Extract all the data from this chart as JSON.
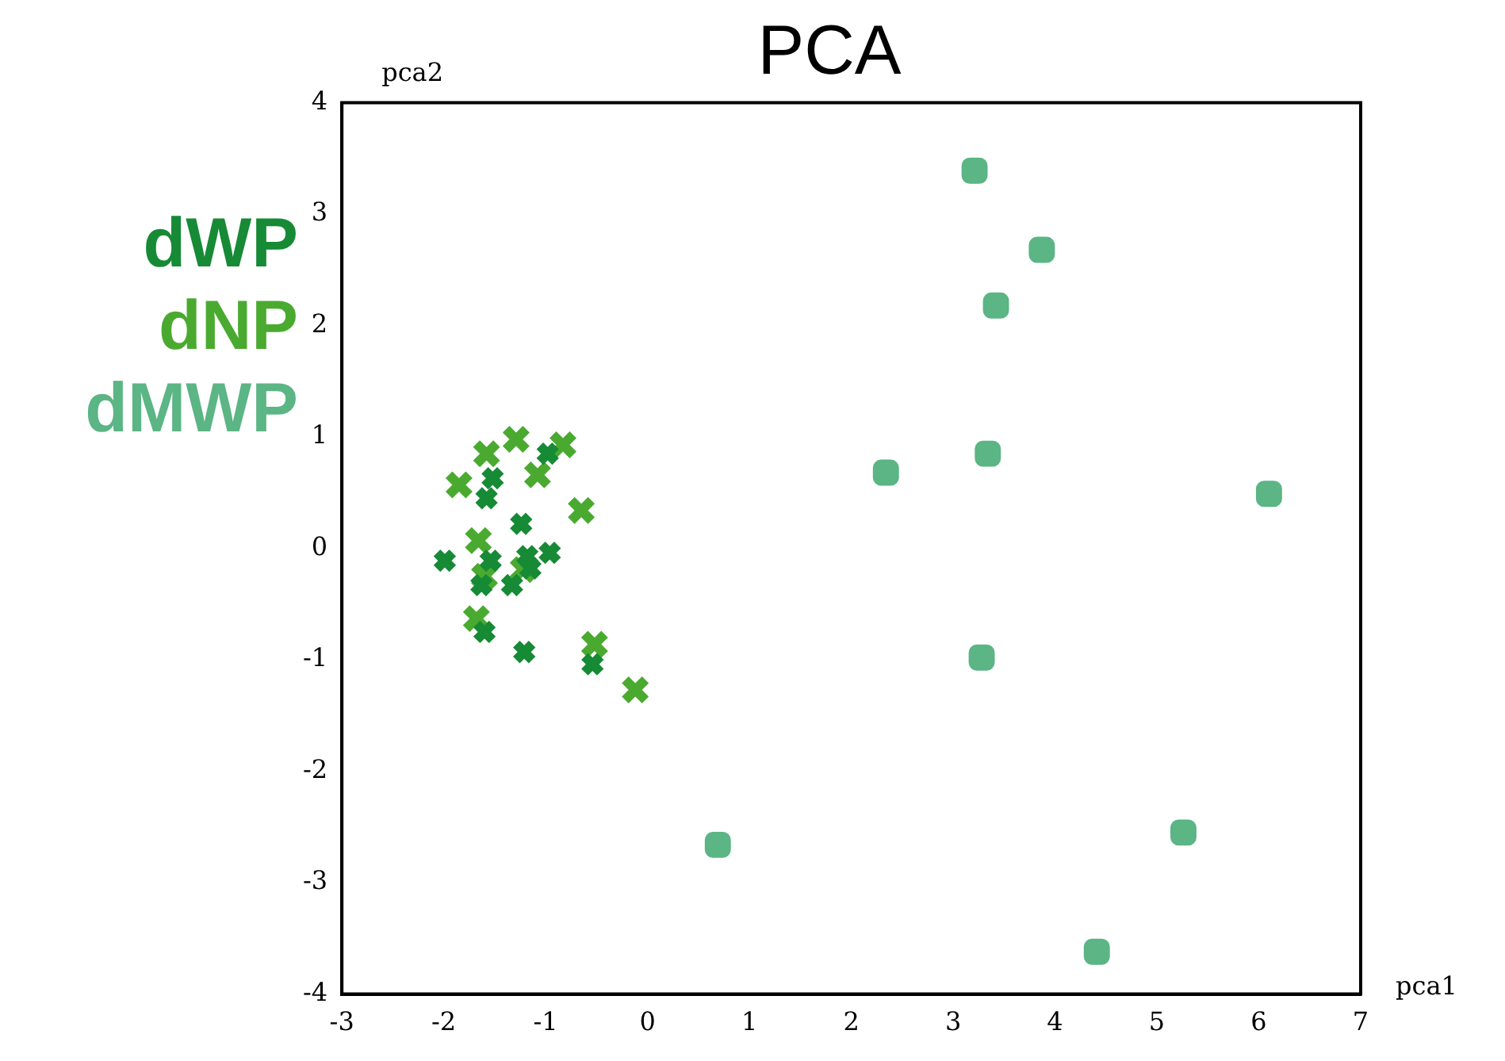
{
  "chart_data": {
    "type": "scatter",
    "title": "PCA",
    "xlabel": "pca1",
    "ylabel": "pca2",
    "xlim": [
      -3,
      7
    ],
    "ylim": [
      -4,
      4
    ],
    "xticks": [
      -3,
      -2,
      -1,
      0,
      1,
      2,
      3,
      4,
      5,
      6,
      7
    ],
    "yticks": [
      -4,
      -3,
      -2,
      -1,
      0,
      1,
      2,
      3,
      4
    ],
    "grid": false,
    "legend": "left",
    "series": [
      {
        "name": "dWP",
        "color": "#168a35",
        "marker": "cross",
        "x": [
          -0.98,
          -1.52,
          -1.58,
          -1.24,
          -1.99,
          -1.54,
          -1.18,
          -0.96,
          -1.15,
          -1.63,
          -1.33,
          -1.6,
          -1.21,
          -0.54
        ],
        "values": [
          0.85,
          0.63,
          0.45,
          0.22,
          -0.11,
          -0.11,
          -0.07,
          -0.04,
          -0.18,
          -0.33,
          -0.33,
          -0.75,
          -0.93,
          -1.04
        ]
      },
      {
        "name": "dNP",
        "color": "#4aaa30",
        "marker": "cross",
        "x": [
          -1.58,
          -1.29,
          -0.83,
          -1.85,
          -1.08,
          -0.65,
          -1.66,
          -1.6,
          -1.68,
          -0.52,
          -0.12,
          -1.22
        ],
        "values": [
          0.85,
          0.98,
          0.93,
          0.57,
          0.66,
          0.34,
          0.07,
          -0.25,
          -0.63,
          -0.86,
          -1.27,
          -0.19
        ]
      },
      {
        "name": "dMWP",
        "color": "#5bb584",
        "marker": "square",
        "x": [
          3.21,
          3.87,
          3.42,
          2.34,
          3.34,
          6.1,
          3.28,
          0.69,
          5.26,
          4.41
        ],
        "values": [
          3.39,
          2.68,
          2.18,
          0.68,
          0.85,
          0.49,
          -0.98,
          -2.66,
          -2.55,
          -3.62
        ]
      }
    ]
  }
}
